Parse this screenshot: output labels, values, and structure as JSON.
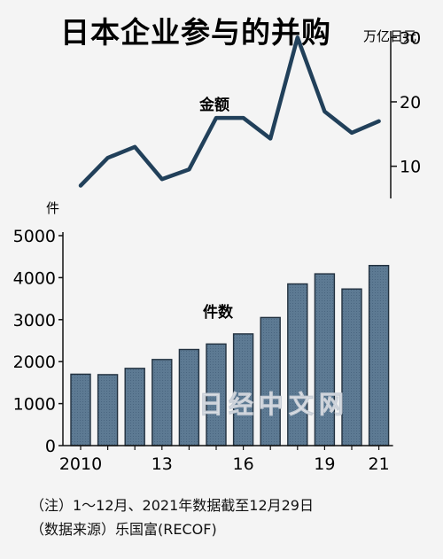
{
  "title": "日本企业参与的并购",
  "watermark": "日经中文网",
  "notes": [
    "（注）1～12月、2021年数据截至12月29日",
    "（数据来源）乐国富(RECOF)"
  ],
  "chart_data": [
    {
      "type": "line",
      "name": "金额",
      "unit": "万亿日元",
      "x": [
        2010,
        2011,
        2012,
        2013,
        2014,
        2015,
        2016,
        2017,
        2018,
        2019,
        2020,
        2021
      ],
      "values": [
        7,
        11.3,
        13,
        8,
        9.5,
        17.5,
        17.5,
        14.3,
        30,
        18.5,
        15.2,
        17
      ],
      "yticks": [
        10,
        20,
        30
      ],
      "ylim": [
        5,
        31
      ],
      "color": "#21405a"
    },
    {
      "type": "bar",
      "name": "件数",
      "unit": "件",
      "x": [
        2010,
        2011,
        2012,
        2013,
        2014,
        2015,
        2016,
        2017,
        2018,
        2019,
        2020,
        2021
      ],
      "values": [
        1700,
        1690,
        1840,
        2050,
        2290,
        2420,
        2660,
        3050,
        3850,
        4090,
        3730,
        4290
      ],
      "yticks": [
        0,
        1000,
        2000,
        3000,
        4000,
        5000
      ],
      "xticklabels": [
        "2010",
        "",
        "",
        "13",
        "",
        "",
        "16",
        "",
        "",
        "19",
        "",
        "21"
      ],
      "ylim": [
        0,
        5000
      ],
      "bar_color": "#5d7a93",
      "edge_color": "#22313f"
    }
  ]
}
